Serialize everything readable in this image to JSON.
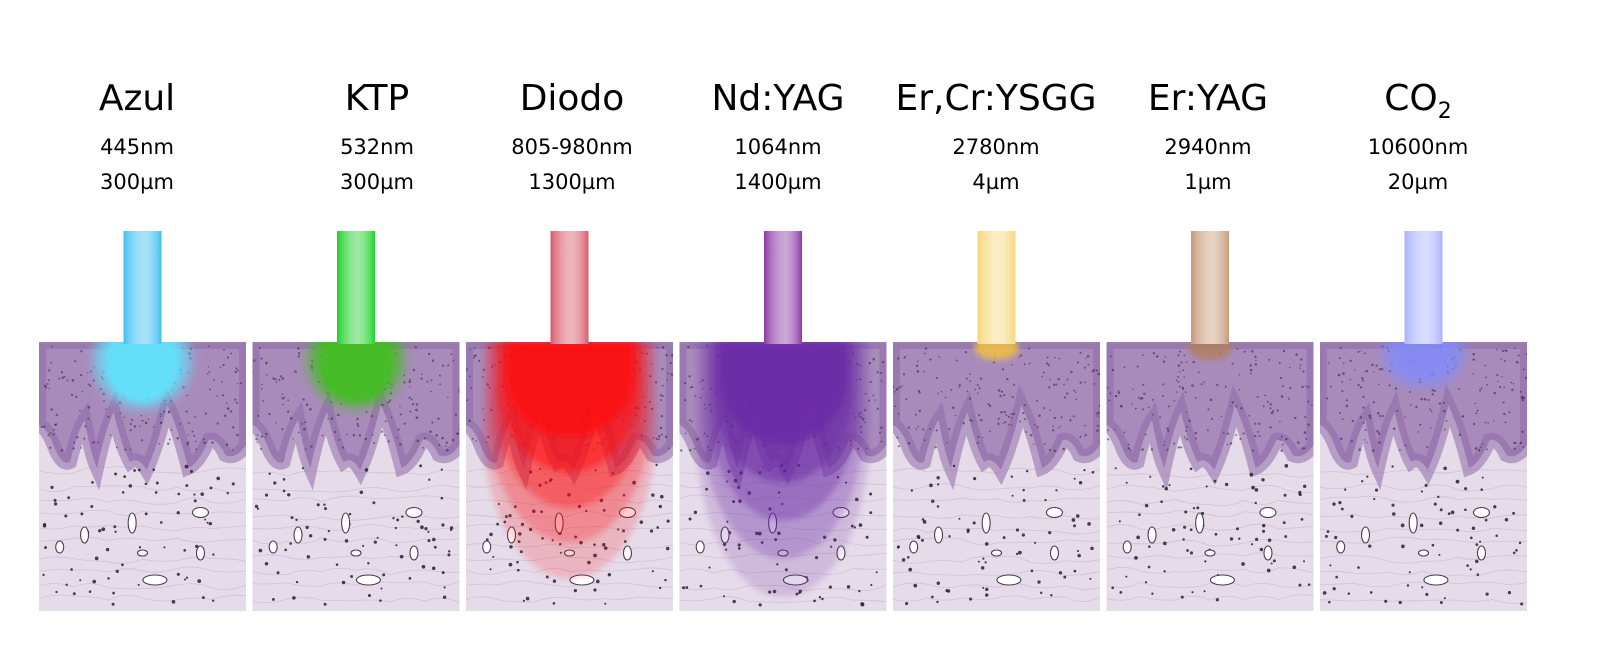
{
  "lasers": [
    {
      "name": "Azul",
      "wavelength": "445nm",
      "depth": "300µm",
      "color": "#3ec0f2",
      "glow": "#5fe6ff",
      "depth_um": 300
    },
    {
      "name": "KTP",
      "wavelength": "532nm",
      "depth": "300µm",
      "color": "#1fd22a",
      "glow": "#3fbf1f",
      "depth_um": 300
    },
    {
      "name": "Diodo",
      "wavelength": "805-980nm",
      "depth": "1300µm",
      "color": "#d95a6b",
      "glow": "#ff1010",
      "depth_um": 1300
    },
    {
      "name": "Nd:YAG",
      "wavelength": "1064nm",
      "depth": "1400µm",
      "color": "#8a3aa8",
      "glow": "#6a2aa6",
      "depth_um": 1400
    },
    {
      "name": "Er,Cr:YSGG",
      "wavelength": "2780nm",
      "depth": "4µm",
      "color": "#f7d67a",
      "glow": "#f2c040",
      "depth_um": 4
    },
    {
      "name": "Er:YAG",
      "wavelength": "2940nm",
      "depth": "1µm",
      "color": "#c89a7a",
      "glow": "#b08060",
      "depth_um": 1
    },
    {
      "name": "CO",
      "name_subscript": "2",
      "wavelength": "10600nm",
      "depth": "20µm",
      "color": "#a9b2ff",
      "glow": "#7f8cff",
      "depth_um": 20
    }
  ],
  "colors": {
    "epidermis": "#a98bbb",
    "basal_layer": "#8e6aa8",
    "dermis": "#e6dbe9",
    "dot": "#2a2030",
    "background": "#ffffff"
  }
}
